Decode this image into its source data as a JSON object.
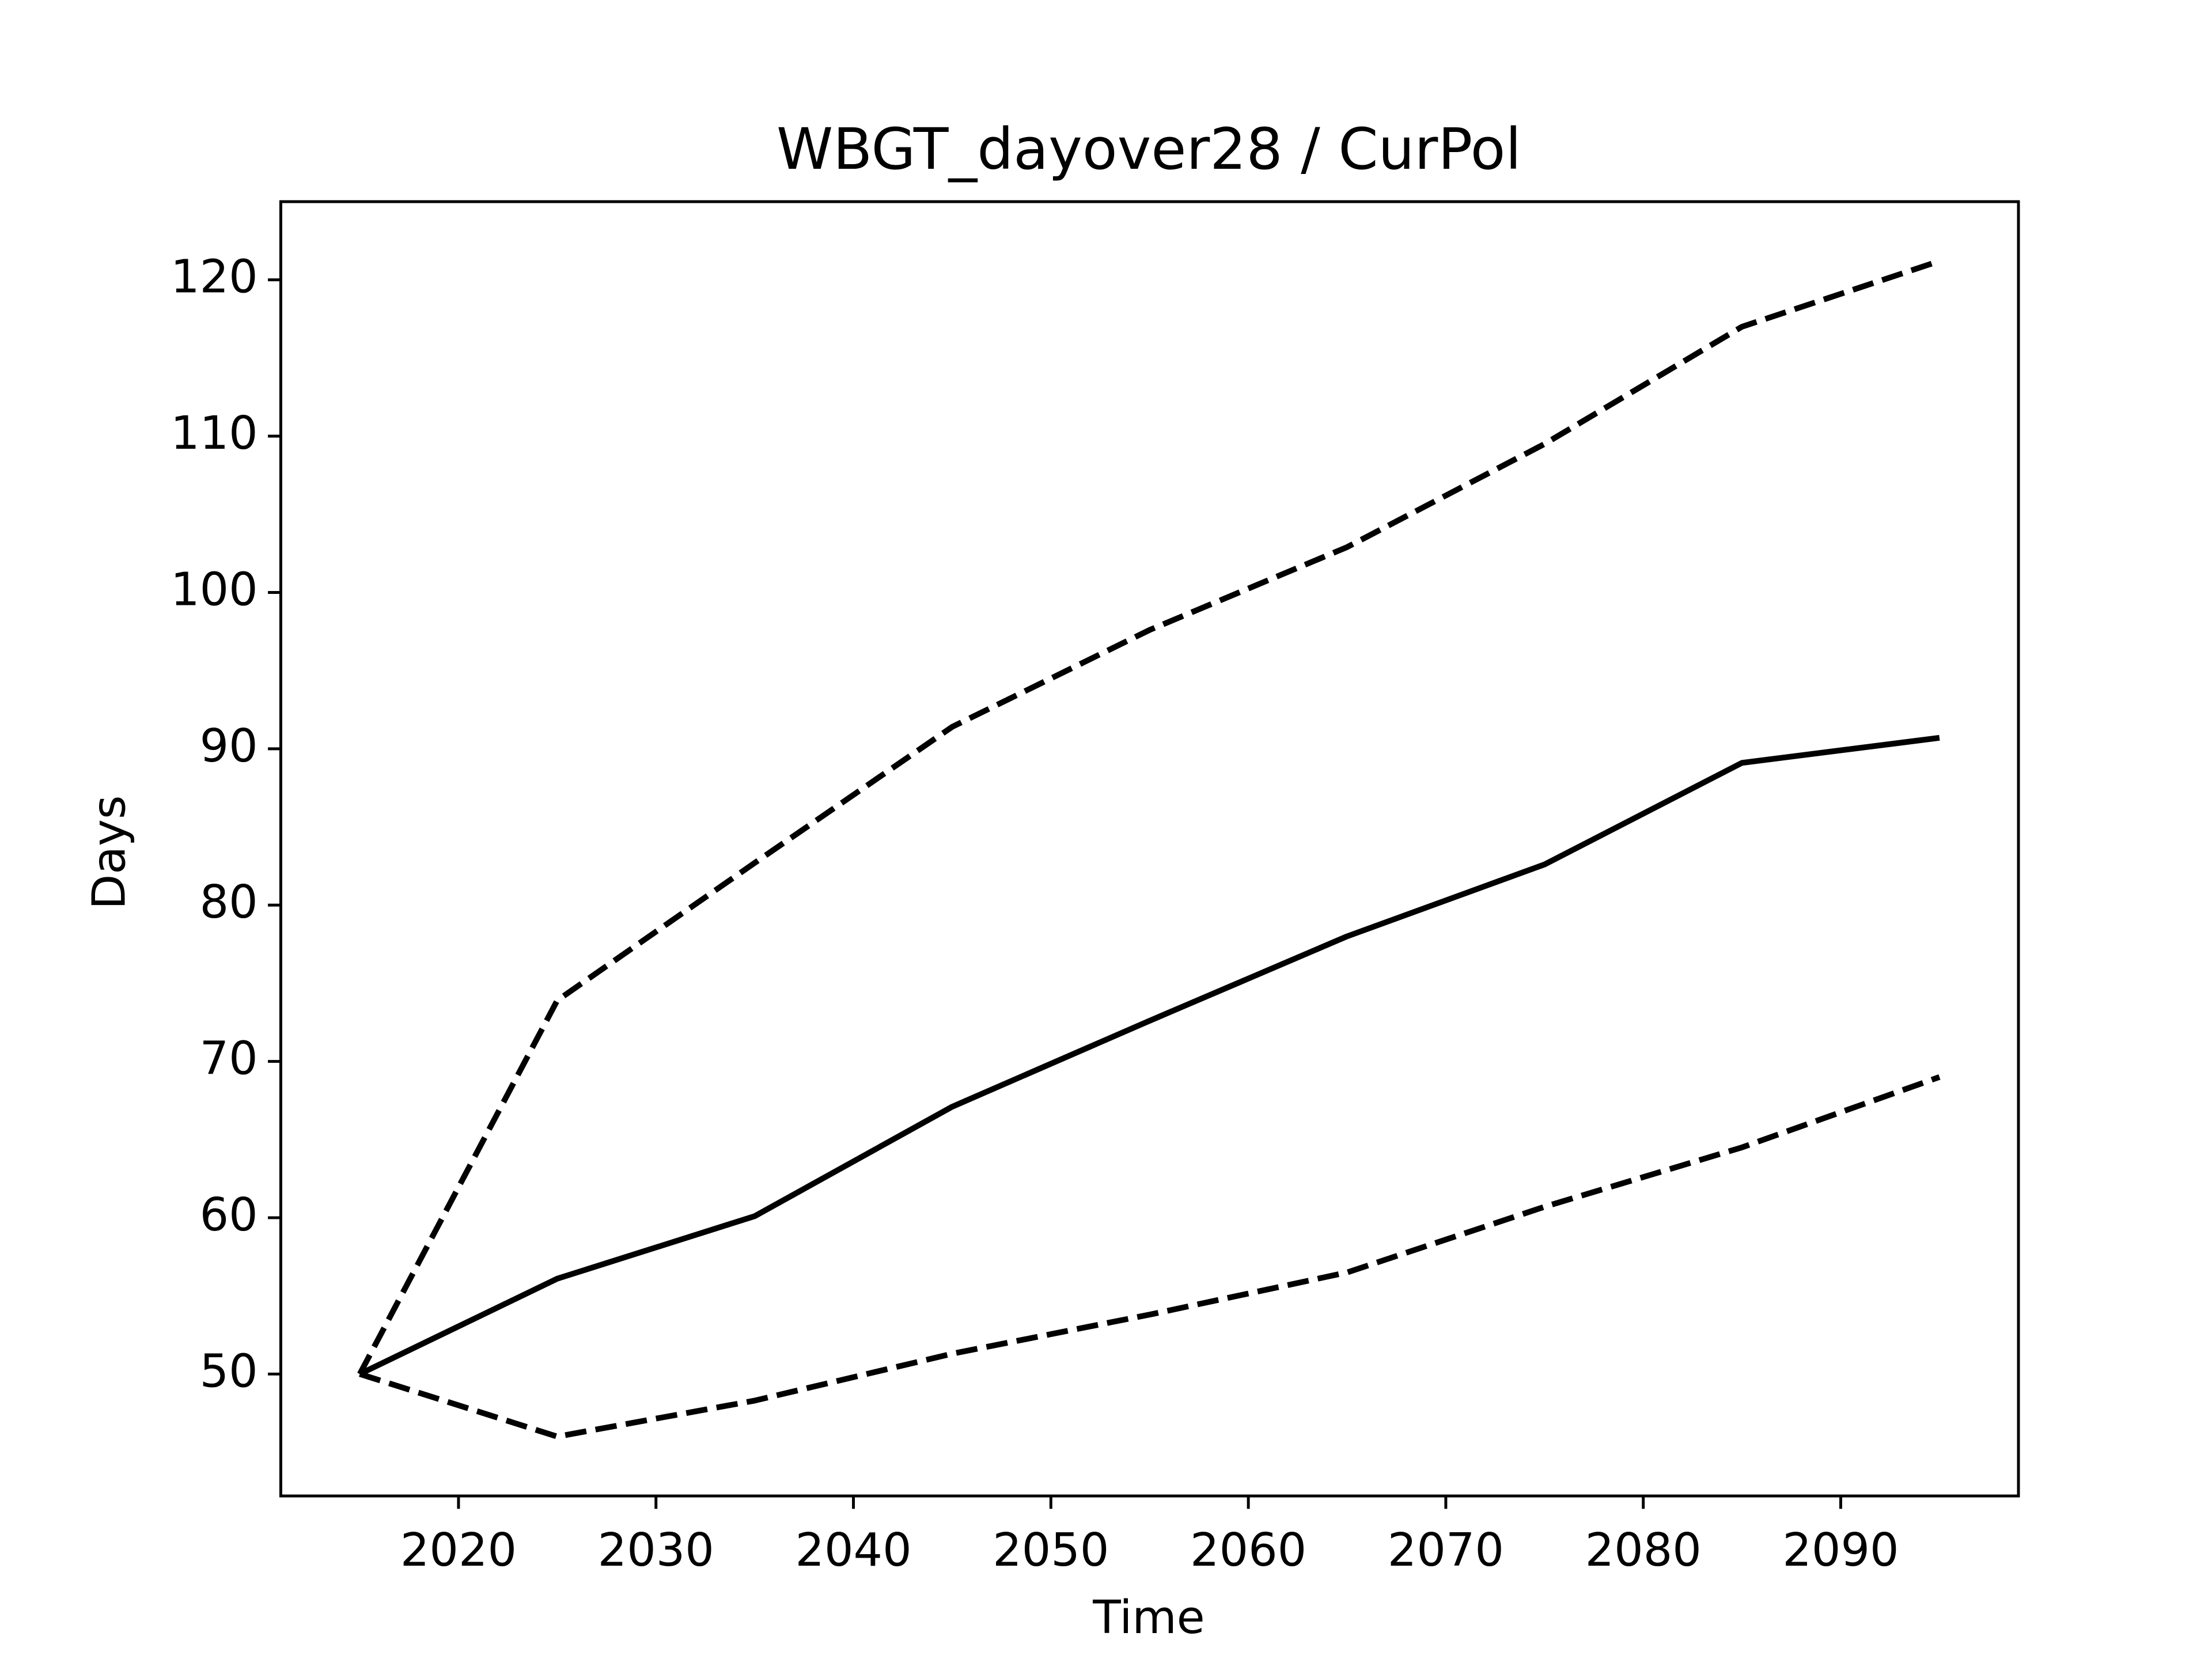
{
  "chart_data": {
    "type": "line",
    "title": "WBGT_dayover28 / CurPol",
    "x_label": "Time",
    "y_label": "Days",
    "x": [
      2015,
      2025,
      2035,
      2045,
      2055,
      2065,
      2075,
      2085,
      2095
    ],
    "series": [
      {
        "color": "#000000",
        "linestyle": "solid",
        "values": [
          50,
          56.1,
          60.1,
          67.1,
          72.6,
          78,
          82.6,
          89.1,
          90.7
        ]
      },
      {
        "color": "#000000",
        "linestyle": "dashed",
        "values": [
          50,
          73.9,
          82.7,
          91.4,
          97.6,
          102.9,
          109.5,
          117,
          121.2
        ]
      },
      {
        "color": "#000000",
        "linestyle": "dashed",
        "values": [
          50,
          46,
          48.3,
          51.3,
          53.8,
          56.5,
          60.7,
          64.5,
          69
        ]
      }
    ],
    "xlim": [
      2011,
      2099
    ],
    "xticks": [
      2020,
      2030,
      2040,
      2050,
      2060,
      2070,
      2080,
      2090
    ],
    "ylim": [
      42.2,
      125
    ],
    "yticks": [
      50,
      60,
      70,
      80,
      90,
      100,
      110,
      120
    ],
    "grid": false
  }
}
